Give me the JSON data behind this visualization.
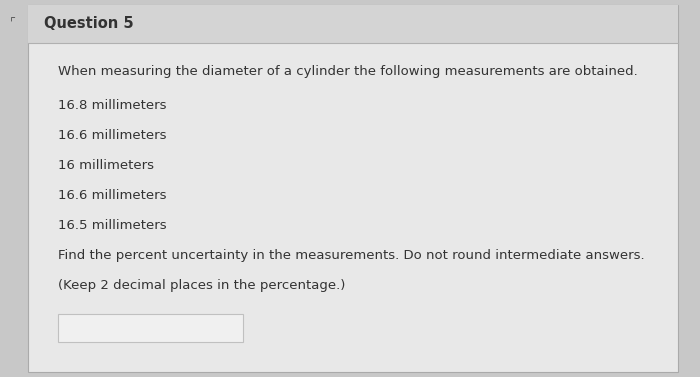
{
  "title": "Question 5",
  "bg_outer": "#c8c8c8",
  "bg_header": "#d4d4d4",
  "bg_content": "#e8e8e8",
  "header_line_color": "#b0b0b0",
  "text_color": "#333333",
  "title_fontsize": 10.5,
  "body_fontsize": 9.5,
  "intro_line": "When measuring the diameter of a cylinder the following measurements are obtained.",
  "measurements": [
    "16.8 millimeters",
    "16.6 millimeters",
    "16 millimeters",
    "16.6 millimeters",
    "16.5 millimeters"
  ],
  "instruction_line1": "Find the percent uncertainty in the measurements. Do not round intermediate answers.",
  "instruction_line2": "(Keep 2 decimal places in the percentage.)",
  "answer_box_facecolor": "#f0f0f0",
  "answer_box_edgecolor": "#c0c0c0"
}
